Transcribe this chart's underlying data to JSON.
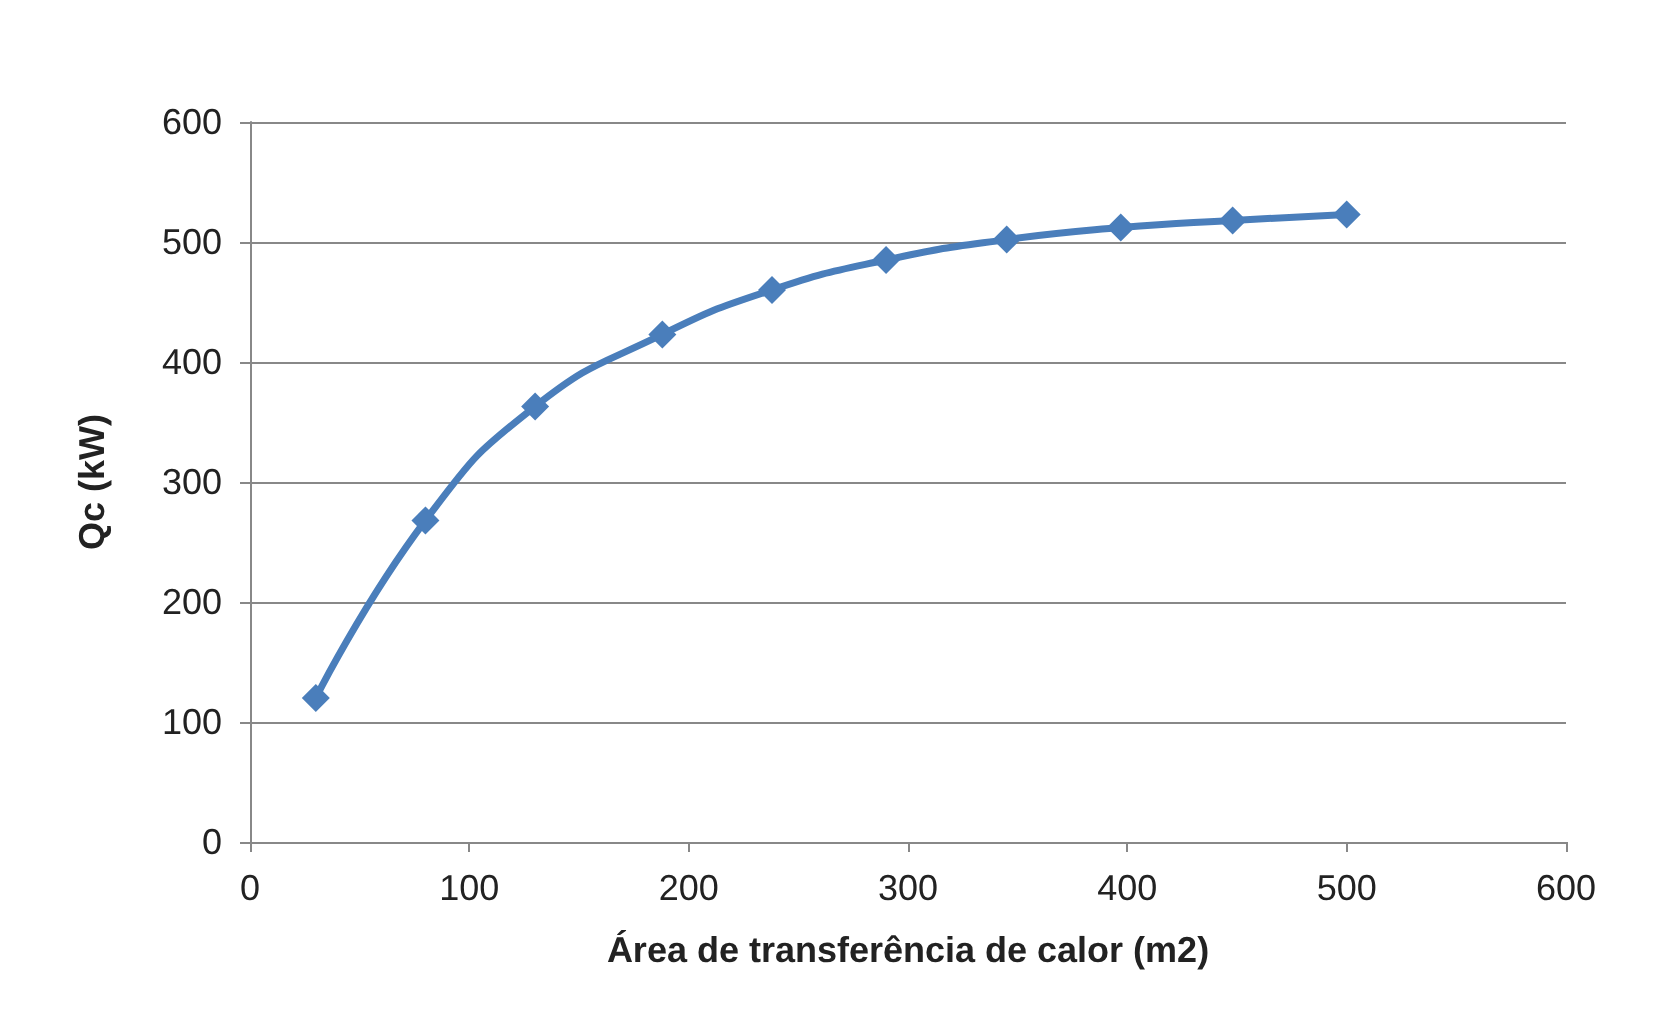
{
  "chart_data": {
    "type": "line",
    "xlabel": "Área de transferência de calor (m2)",
    "ylabel": "Qc (kW)",
    "series": [
      {
        "color": "#4a7ebb",
        "x": [
          30,
          80,
          130,
          188,
          238,
          290,
          345,
          397,
          448,
          500
        ],
        "values": [
          120,
          268,
          363,
          423,
          460,
          485,
          502,
          512,
          518,
          523
        ]
      }
    ],
    "xlim": [
      0,
      600
    ],
    "xticks": [
      0,
      100,
      200,
      300,
      400,
      500,
      600
    ],
    "ylim": [
      0,
      600
    ],
    "yticks": [
      0,
      100,
      200,
      300,
      400,
      500,
      600
    ],
    "grid": "y",
    "marker": "diamond",
    "line_style": "solid"
  }
}
